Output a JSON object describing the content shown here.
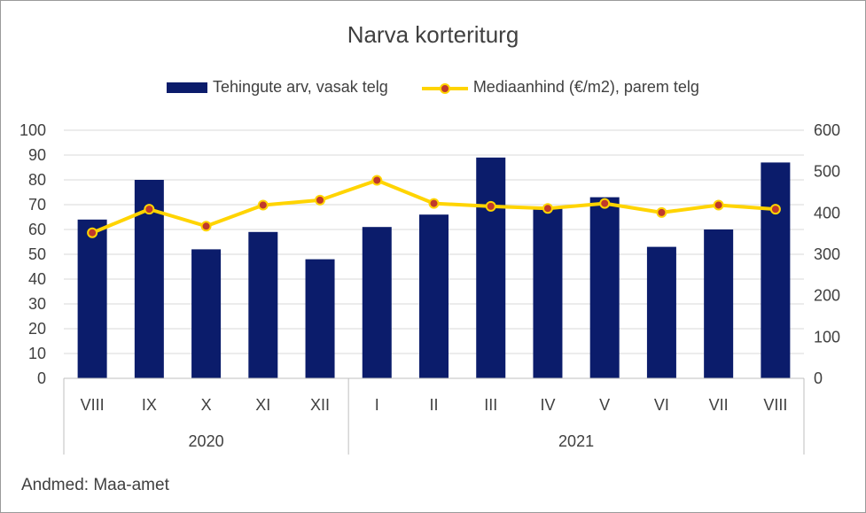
{
  "chart_data": {
    "type": "bar",
    "title": "Narva korteriturg",
    "categories": [
      "VIII",
      "IX",
      "X",
      "XI",
      "XII",
      "I",
      "II",
      "III",
      "IV",
      "V",
      "VI",
      "VII",
      "VIII"
    ],
    "groups": [
      {
        "label": "2020",
        "count": 5
      },
      {
        "label": "2021",
        "count": 8
      }
    ],
    "series": [
      {
        "name": "Tehingute arv, vasak telg",
        "type": "bar",
        "axis": "left",
        "color": "#0b1c6b",
        "values": [
          64,
          80,
          52,
          59,
          48,
          61,
          66,
          89,
          69,
          73,
          53,
          60,
          87
        ]
      },
      {
        "name": "Mediaanhind (€/m2), parem telg",
        "type": "line",
        "axis": "right",
        "color": "#ffd400",
        "marker_color": "#c0392b",
        "values": [
          352,
          409,
          368,
          419,
          431,
          479,
          423,
          416,
          411,
          423,
          401,
          419,
          409
        ]
      }
    ],
    "y_left": {
      "min": 0,
      "max": 100,
      "ticks": [
        0,
        10,
        20,
        30,
        40,
        50,
        60,
        70,
        80,
        90,
        100
      ]
    },
    "y_right": {
      "min": 0,
      "max": 600,
      "ticks": [
        0,
        100,
        200,
        300,
        400,
        500,
        600
      ]
    },
    "grid": true,
    "legend_position": "top"
  },
  "source": "Andmed: Maa-amet"
}
